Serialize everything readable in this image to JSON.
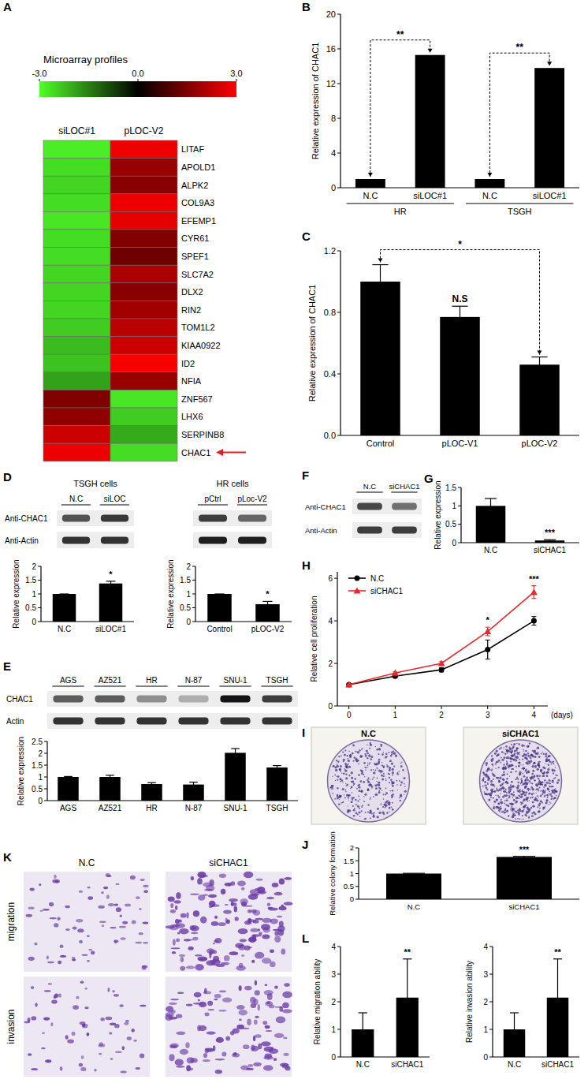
{
  "panel_labels": [
    "A",
    "B",
    "C",
    "D",
    "E",
    "F",
    "G",
    "H",
    "I",
    "J",
    "K",
    "L"
  ],
  "chart_data": [
    {
      "type": "heatmap",
      "title": "Microarray profiles",
      "x": [
        "siLOC#1",
        "pLOC-V2"
      ],
      "y": [
        "LITAF",
        "APOLD1",
        "ALPK2",
        "COL9A3",
        "EFEMP1",
        "CYR61",
        "SPEF1",
        "SLC7A2",
        "DLX2",
        "RIN2",
        "TOM1L2",
        "KIAA0922",
        "ID2",
        "NFIA",
        "ZNF567",
        "LHX6",
        "SERPINB8",
        "CHAC1"
      ],
      "cells": [
        [
          -2.8,
          2.8
        ],
        [
          -2.6,
          1.8
        ],
        [
          -2.5,
          1.6
        ],
        [
          -2.6,
          2.8
        ],
        [
          -2.7,
          2.7
        ],
        [
          -2.6,
          1.5
        ],
        [
          -2.6,
          1.3
        ],
        [
          -2.5,
          2.0
        ],
        [
          -2.5,
          1.6
        ],
        [
          -2.5,
          1.9
        ],
        [
          -2.4,
          2.2
        ],
        [
          -2.2,
          2.4
        ],
        [
          -2.3,
          2.9
        ],
        [
          -1.9,
          1.8
        ],
        [
          1.5,
          -2.7
        ],
        [
          1.7,
          -2.4
        ],
        [
          2.4,
          -2.0
        ],
        [
          2.8,
          -2.6
        ]
      ],
      "color_range": [
        -3,
        3
      ],
      "color_ticks": [
        {
          "value": -3,
          "label": "-3.0"
        },
        {
          "value": 0,
          "label": "0.0"
        },
        {
          "value": 3,
          "label": "3.0"
        }
      ]
    },
    {
      "type": "bar",
      "y_label": "Relative expression of CHAC1",
      "categories": [
        "N.C",
        "siLOC#1",
        "N.C",
        "siLOC#1"
      ],
      "groups": [
        "HR",
        "TSGH"
      ],
      "values": [
        1,
        15.3,
        1,
        13.8
      ],
      "color": "#000000",
      "ylim": [
        0,
        20
      ],
      "yticks": [
        0,
        4,
        8,
        12,
        16,
        20
      ],
      "annotations": [
        {
          "text": "**",
          "from": 0,
          "to": 1
        },
        {
          "text": "**",
          "from": 2,
          "to": 3
        }
      ]
    },
    {
      "type": "bar",
      "y_label": "Relative expression of CHAC1",
      "categories": [
        "Control",
        "pLOC-V1",
        "pLOC-V2"
      ],
      "values": [
        1,
        0.77,
        0.46
      ],
      "errors": [
        0.11,
        0.07,
        0.05
      ],
      "color": "#000000",
      "ylim": [
        0,
        1.2
      ],
      "yticks": [
        {
          "value": 0,
          "label": "0.0"
        },
        0.4,
        0.8,
        1.2
      ],
      "annotations": [
        {
          "text": "N.S",
          "at": 1
        },
        {
          "text": "*",
          "from": 0,
          "to": 2
        }
      ]
    },
    {
      "type": "bar",
      "y_label": "Relative expression",
      "categories": [
        "N.C",
        "siLOC#1"
      ],
      "values": [
        1,
        1.38
      ],
      "errors": [
        0,
        0.08
      ],
      "color": "#000000",
      "ylim": [
        0,
        2
      ],
      "yticks": [
        0,
        0.5,
        1,
        1.5,
        2
      ],
      "annotations": [
        {
          "text": "*",
          "at": 1
        }
      ]
    },
    {
      "type": "bar",
      "y_label": "Relative expression",
      "categories": [
        "Control",
        "pLOC-V2"
      ],
      "values": [
        1,
        0.63
      ],
      "errors": [
        0,
        0.1
      ],
      "color": "#000000",
      "ylim": [
        0,
        2
      ],
      "yticks": [
        0,
        0.5,
        1,
        1.5,
        2
      ],
      "annotations": [
        {
          "text": "*",
          "at": 1
        }
      ]
    },
    {
      "type": "bar",
      "y_label": "Relative expression",
      "categories": [
        "AGS",
        "AZ521",
        "HR",
        "N-87",
        "SNU-1",
        "TSGH"
      ],
      "values": [
        1,
        1,
        0.7,
        0.68,
        2.02,
        1.4
      ],
      "errors": [
        0.02,
        0.07,
        0.06,
        0.1,
        0.18,
        0.08
      ],
      "color": "#000000",
      "ylim": [
        0,
        2.5
      ],
      "yticks": [
        0,
        0.5,
        1,
        1.5,
        2,
        2.5
      ]
    },
    {
      "type": "bar",
      "y_label": "Relative expression",
      "categories": [
        "N.C",
        "siCHAC1"
      ],
      "values": [
        1,
        0.06
      ],
      "errors": [
        0.2,
        0.02
      ],
      "color": "#000000",
      "ylim": [
        0,
        1.5
      ],
      "yticks": [
        0,
        0.5,
        1,
        1.5
      ],
      "annotations": [
        {
          "text": "***",
          "at": 1
        }
      ]
    },
    {
      "type": "line",
      "y_label": "Relative cell proliferation",
      "x_label": "(days)",
      "x": [
        0,
        1,
        2,
        3,
        4
      ],
      "xlim": [
        -0.25,
        4.3
      ],
      "xticks": [
        0,
        1,
        2,
        3,
        4
      ],
      "ylim": [
        0,
        6.3
      ],
      "yticks": [
        0,
        2,
        4,
        6
      ],
      "legend": "top-left",
      "series": [
        {
          "name": "N.C",
          "color": "#000000",
          "marker": "circle",
          "values": [
            1,
            1.4,
            1.7,
            2.65,
            4.0
          ],
          "errors": [
            0.03,
            0.05,
            0.1,
            0.45,
            0.2
          ]
        },
        {
          "name": "siCHAC1",
          "color": "#e8282a",
          "marker": "triangle",
          "values": [
            1,
            1.55,
            2.0,
            3.5,
            5.35
          ],
          "errors": [
            0.03,
            0.05,
            0.08,
            0.2,
            0.3
          ]
        }
      ],
      "annotations": [
        {
          "text": "*",
          "x": 3
        },
        {
          "text": "***",
          "x": 4
        }
      ]
    },
    {
      "type": "bar",
      "y_label": "Relative colony formation",
      "categories": [
        "N.C",
        "siCHAC1"
      ],
      "values": [
        1,
        1.65
      ],
      "errors": [
        0.01,
        0.02
      ],
      "color": "#000000",
      "ylim": [
        0,
        2
      ],
      "yticks": [
        0,
        0.5,
        1,
        1.5,
        2
      ],
      "annotations": [
        {
          "text": "***",
          "at": 1
        }
      ]
    },
    {
      "type": "bar",
      "y_label": "Relative migration ability",
      "categories": [
        "N.C",
        "siCHAC1"
      ],
      "values": [
        1,
        2.15
      ],
      "errors": [
        0.6,
        1.4
      ],
      "color": "#000000",
      "ylim": [
        0,
        4
      ],
      "yticks": [
        0,
        1,
        2,
        3,
        4
      ],
      "annotations": [
        {
          "text": "**",
          "at": 1
        }
      ]
    },
    {
      "type": "bar",
      "y_label": "Relative invasion ability",
      "categories": [
        "N.C",
        "siCHAC1"
      ],
      "values": [
        1,
        2.15
      ],
      "errors": [
        0.6,
        1.4
      ],
      "color": "#000000",
      "ylim": [
        0,
        4
      ],
      "yticks": [
        0,
        1,
        2,
        3,
        4
      ],
      "annotations": [
        {
          "text": "**",
          "at": 1
        }
      ]
    }
  ],
  "blots": [
    {
      "row_labels": [
        "Anti-CHAC1",
        "Anti-Actin"
      ],
      "sections": [
        {
          "title": "TSGH cells",
          "lanes": [
            "N.C",
            "siLOC"
          ],
          "band_density": [
            [
              0.7,
              0.82
            ],
            [
              0.85,
              0.85
            ]
          ]
        },
        {
          "title": "HR cells",
          "lanes": [
            "pCtrl",
            "pLoc-V2"
          ],
          "band_density": [
            [
              0.8,
              0.6
            ],
            [
              0.95,
              0.95
            ]
          ]
        }
      ]
    },
    {
      "row_labels": [
        "CHAC1",
        "Actin"
      ],
      "sections": [
        {
          "lanes": [
            "AGS",
            "AZ521",
            "HR",
            "N-87",
            "SNU-1",
            "TSGH"
          ],
          "band_density": [
            [
              0.65,
              0.65,
              0.4,
              0.25,
              1,
              0.8
            ],
            [
              0.85,
              0.85,
              0.85,
              0.85,
              0.85,
              0.85
            ]
          ]
        }
      ]
    },
    {
      "row_labels": [
        "Anti-CHAC1",
        "Anti-Actin"
      ],
      "sections": [
        {
          "lanes": [
            "N.C",
            "siCHAC1"
          ],
          "band_density": [
            [
              0.75,
              0.55
            ],
            [
              0.8,
              0.8
            ]
          ]
        }
      ]
    }
  ],
  "images": [
    {
      "column_labels": [
        "N.C",
        "siCHAC1"
      ]
    },
    {
      "column_labels": [
        "N.C",
        "siCHAC1"
      ],
      "row_labels": [
        "migration",
        "invasion"
      ]
    }
  ]
}
